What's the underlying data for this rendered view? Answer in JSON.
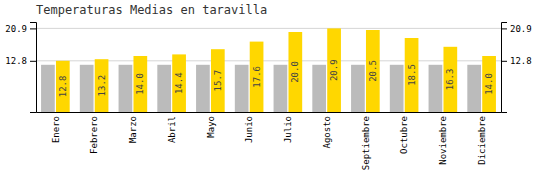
{
  "chart_data": {
    "type": "bar",
    "title": "Temperaturas Medias en taravilla",
    "categories": [
      "Enero",
      "Febrero",
      "Marzo",
      "Abril",
      "Mayo",
      "Junio",
      "Julio",
      "Agosto",
      "Septiembre",
      "Octubre",
      "Noviembre",
      "Diciembre"
    ],
    "series": [
      {
        "color": "#BBBBBB",
        "values": [
          11.8,
          11.8,
          11.8,
          11.8,
          11.8,
          11.8,
          11.8,
          11.8,
          11.8,
          11.8,
          11.8,
          11.8
        ]
      },
      {
        "color": "#FFD700",
        "values": [
          12.8,
          13.2,
          14.0,
          14.4,
          15.7,
          17.6,
          20.0,
          20.9,
          20.5,
          18.5,
          16.3,
          14.0
        ],
        "data_labels": true
      }
    ],
    "ylim": [
      0,
      22.5
    ],
    "yticks": [
      12.8,
      20.9
    ],
    "grid": true
  }
}
